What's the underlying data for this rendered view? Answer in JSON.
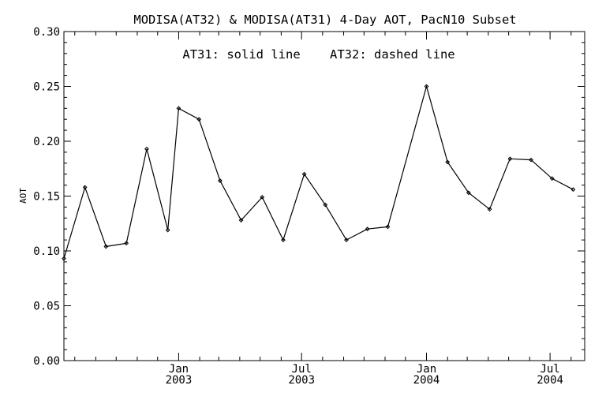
{
  "chart_data": {
    "type": "line",
    "title": "MODISA(AT32) & MODISA(AT31) 4-Day AOT, PacN10 Subset",
    "annotation": "AT31: solid line    AT32: dashed line",
    "ylabel": "AOT",
    "xlabel": "",
    "ylim": [
      0.0,
      0.3
    ],
    "xlim": [
      "2002-07-16",
      "2004-08-21"
    ],
    "grid": false,
    "y_ticks": [
      "0.00",
      "0.05",
      "0.10",
      "0.15",
      "0.20",
      "0.25",
      "0.30"
    ],
    "x_ticks": [
      {
        "date": "2003-01-01",
        "line1": "Jan",
        "line2": "2003"
      },
      {
        "date": "2003-07-01",
        "line1": "Jul",
        "line2": "2003"
      },
      {
        "date": "2004-01-01",
        "line1": "Jan",
        "line2": "2004"
      },
      {
        "date": "2004-07-01",
        "line1": "Jul",
        "line2": "2004"
      }
    ],
    "series": [
      {
        "style": "solid",
        "points": [
          {
            "x": "2002-07-16",
            "y": 0.093
          },
          {
            "x": "2002-08-16",
            "y": 0.158
          },
          {
            "x": "2002-09-16",
            "y": 0.104
          },
          {
            "x": "2002-10-16",
            "y": 0.107
          },
          {
            "x": "2002-11-15",
            "y": 0.193
          },
          {
            "x": "2002-12-16",
            "y": 0.119
          },
          {
            "x": "2003-01-01",
            "y": 0.23
          },
          {
            "x": "2003-01-31",
            "y": 0.22
          },
          {
            "x": "2003-03-03",
            "y": 0.164
          },
          {
            "x": "2003-04-03",
            "y": 0.128
          },
          {
            "x": "2003-05-04",
            "y": 0.149
          },
          {
            "x": "2003-06-04",
            "y": 0.11
          },
          {
            "x": "2003-07-05",
            "y": 0.17
          },
          {
            "x": "2003-08-05",
            "y": 0.142
          },
          {
            "x": "2003-09-05",
            "y": 0.11
          },
          {
            "x": "2003-10-06",
            "y": 0.12
          },
          {
            "x": "2003-11-05",
            "y": 0.122
          },
          {
            "x": "2004-01-01",
            "y": 0.25
          },
          {
            "x": "2004-02-01",
            "y": 0.181
          },
          {
            "x": "2004-03-03",
            "y": 0.153
          },
          {
            "x": "2004-04-03",
            "y": 0.138
          },
          {
            "x": "2004-05-03",
            "y": 0.184
          },
          {
            "x": "2004-06-03",
            "y": 0.183
          },
          {
            "x": "2004-07-04",
            "y": 0.166
          },
          {
            "x": "2004-08-04",
            "y": 0.156
          }
        ]
      }
    ]
  }
}
